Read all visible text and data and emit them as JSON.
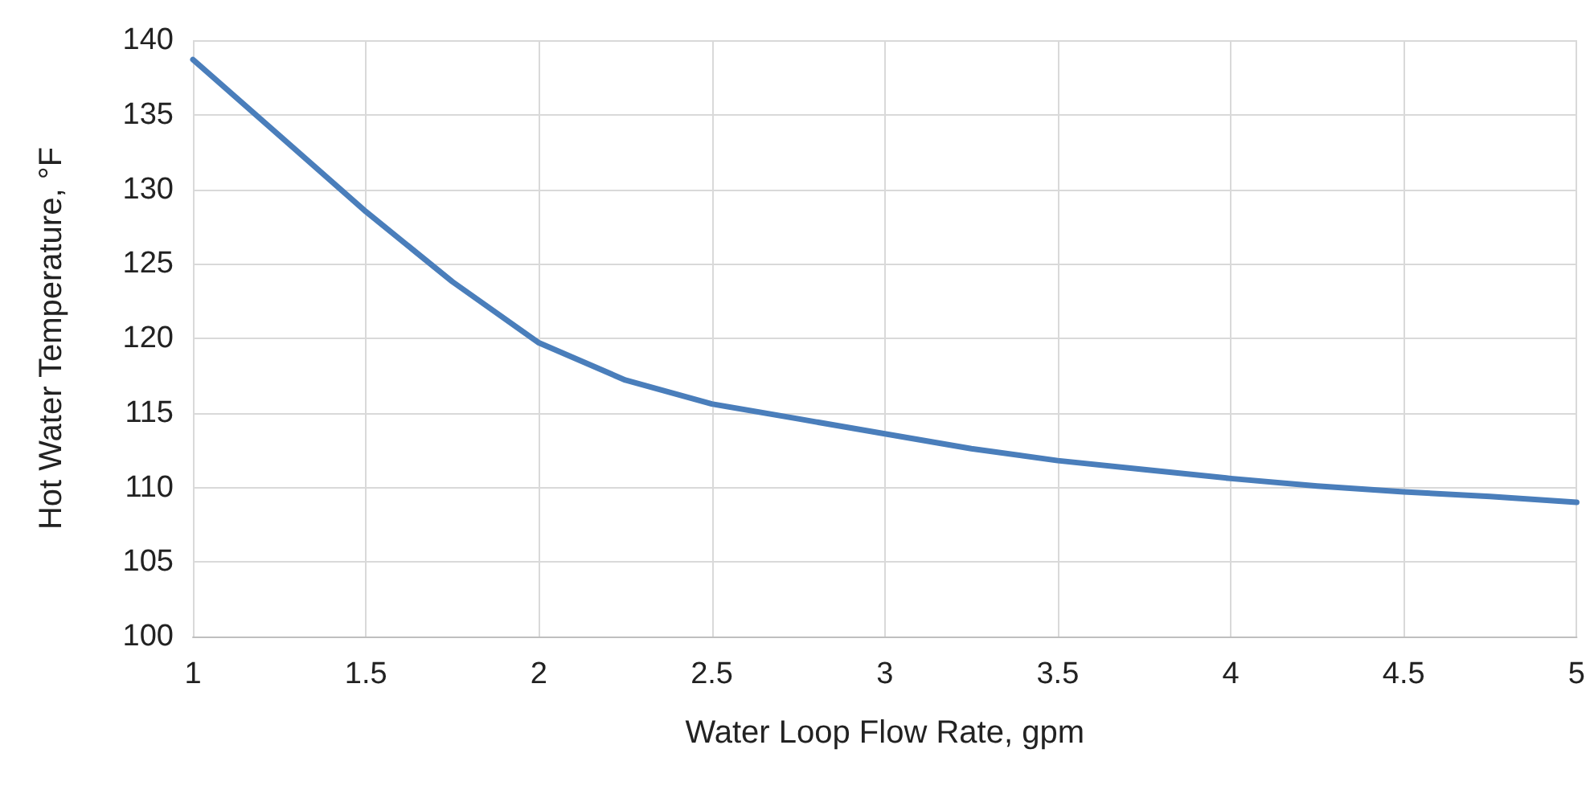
{
  "chart_data": {
    "type": "line",
    "xlabel": "Water Loop Flow Rate, gpm",
    "ylabel": "Hot Water Temperature, °F",
    "x": [
      1,
      1.25,
      1.5,
      1.75,
      2,
      2.25,
      2.5,
      2.75,
      3,
      3.25,
      3.5,
      3.75,
      4,
      4.25,
      4.5,
      4.75,
      5
    ],
    "series": [
      {
        "color": "#4a7ebb",
        "values": [
          138.7,
          133.6,
          128.5,
          123.8,
          119.7,
          117.2,
          115.6,
          114.6,
          113.6,
          112.6,
          111.8,
          111.2,
          110.6,
          110.1,
          109.7,
          109.4,
          109.0
        ]
      }
    ],
    "xlim": [
      1,
      5
    ],
    "xticks": [
      1,
      1.5,
      2,
      2.5,
      3,
      3.5,
      4,
      4.5,
      5
    ],
    "ylim": [
      100,
      140
    ],
    "yticks": [
      100,
      105,
      110,
      115,
      120,
      125,
      130,
      135,
      140
    ],
    "grid": true,
    "marker": "none",
    "line_style": "solid"
  }
}
